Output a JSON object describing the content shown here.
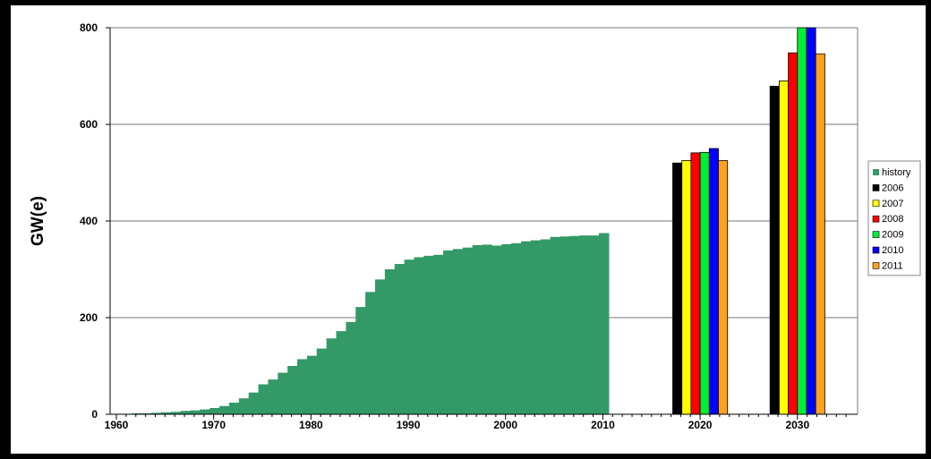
{
  "chart_data": {
    "type": "bar",
    "title": "",
    "xlabel": "",
    "ylabel": "GW(e)",
    "ylim": [
      0,
      800
    ],
    "y_ticks": [
      0,
      200,
      400,
      600,
      800
    ],
    "x_ticks": [
      "1960",
      "1970",
      "1980",
      "1990",
      "2000",
      "2010",
      "2020",
      "2030"
    ],
    "grid": "horizontal",
    "legend_position": "right",
    "history": {
      "name": "history",
      "color": "#339966",
      "x": [
        1960,
        1961,
        1962,
        1963,
        1964,
        1965,
        1966,
        1967,
        1968,
        1969,
        1970,
        1971,
        1972,
        1973,
        1974,
        1975,
        1976,
        1977,
        1978,
        1979,
        1980,
        1981,
        1982,
        1983,
        1984,
        1985,
        1986,
        1987,
        1988,
        1989,
        1990,
        1991,
        1992,
        1993,
        1994,
        1995,
        1996,
        1997,
        1998,
        1999,
        2000,
        2001,
        2002,
        2003,
        2004,
        2005,
        2006,
        2007,
        2008,
        2009,
        2010
      ],
      "values": [
        1,
        1,
        2,
        2,
        3,
        4,
        5,
        7,
        8,
        10,
        13,
        17,
        24,
        33,
        45,
        62,
        72,
        86,
        100,
        114,
        121,
        136,
        157,
        172,
        191,
        222,
        253,
        279,
        300,
        311,
        320,
        325,
        328,
        330,
        339,
        342,
        345,
        350,
        351,
        349,
        352,
        354,
        358,
        360,
        362,
        367,
        368,
        369,
        370,
        370,
        375
      ]
    },
    "projections": {
      "categories": [
        "2020",
        "2030"
      ],
      "series": [
        {
          "name": "2006",
          "color": "#000000",
          "values": [
            520,
            679
          ]
        },
        {
          "name": "2007",
          "color": "#ffff00",
          "values": [
            525,
            690
          ]
        },
        {
          "name": "2008",
          "color": "#ff0000",
          "values": [
            541,
            748
          ]
        },
        {
          "name": "2009",
          "color": "#00ee33",
          "values": [
            542,
            805
          ]
        },
        {
          "name": "2010",
          "color": "#0000ff",
          "values": [
            550,
            805
          ]
        },
        {
          "name": "2011",
          "color": "#ffa020",
          "values": [
            525,
            746
          ]
        }
      ]
    },
    "legend": [
      {
        "name": "history",
        "color": "#339966"
      },
      {
        "name": "2006",
        "color": "#000000"
      },
      {
        "name": "2007",
        "color": "#ffff00"
      },
      {
        "name": "2008",
        "color": "#ff0000"
      },
      {
        "name": "2009",
        "color": "#00ee33"
      },
      {
        "name": "2010",
        "color": "#0000ff"
      },
      {
        "name": "2011",
        "color": "#ffa020"
      }
    ]
  }
}
